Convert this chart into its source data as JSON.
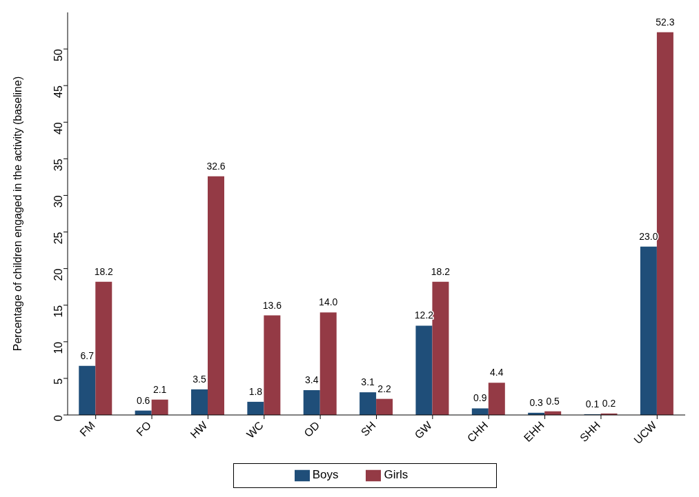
{
  "chart_data": {
    "type": "bar",
    "ylabel": "Percentage of children engaged in the activity (baseline)",
    "categories": [
      "FM",
      "FO",
      "HW",
      "WC",
      "OD",
      "SH",
      "GW",
      "CHH",
      "EHH",
      "SHH",
      "UCW"
    ],
    "series": [
      {
        "name": "Boys",
        "color": "#1f4e79",
        "values": [
          6.7,
          0.6,
          3.5,
          1.8,
          3.4,
          3.1,
          12.2,
          0.9,
          0.3,
          0.1,
          23.0
        ],
        "value_labels": [
          "6.7",
          "0.6",
          "3.5",
          "1.8",
          "3.4",
          "3.1",
          "12.2",
          "0.9",
          "0.3",
          "0.1",
          "23.0"
        ]
      },
      {
        "name": "Girls",
        "color": "#943a45",
        "values": [
          18.2,
          2.1,
          32.6,
          13.6,
          14.0,
          2.2,
          18.2,
          4.4,
          0.5,
          0.2,
          52.3
        ],
        "value_labels": [
          "18.2",
          "2.1",
          "32.6",
          "13.6",
          "14.0",
          "2.2",
          "18.2",
          "4.4",
          "0.5",
          "0.2",
          "52.3"
        ]
      }
    ],
    "ylim": [
      0,
      55
    ],
    "yticks": [
      0,
      5,
      10,
      15,
      20,
      25,
      30,
      35,
      40,
      45,
      50
    ],
    "grid": false,
    "legend": "bottom"
  }
}
